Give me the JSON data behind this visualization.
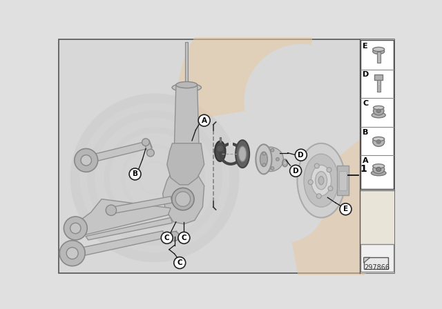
{
  "fig_w": 6.4,
  "fig_h": 4.48,
  "dpi": 100,
  "outer_bg": "#e0e0e0",
  "main_bg": "#d8d8d8",
  "right_panel_bg": "#f5f0e8",
  "right_panel_border": "#444444",
  "watermark_grey_color": "#c8c8c8",
  "watermark_orange_color": "#e8c8a0",
  "border_color": "#555555",
  "part_box_bg": "#f8f8f8",
  "part_box_border": "#888888",
  "title_number": "297866",
  "parts_labels": [
    "E",
    "D",
    "C",
    "B",
    "A"
  ],
  "suspension_color": "#c0c0c0",
  "suspension_dark": "#a0a0a0",
  "bearing_dark": "#606060",
  "bearing_mid": "#909090",
  "bearing_light": "#c8c8c8",
  "rotor_color": "#cccccc",
  "label_line_color": "#222222"
}
